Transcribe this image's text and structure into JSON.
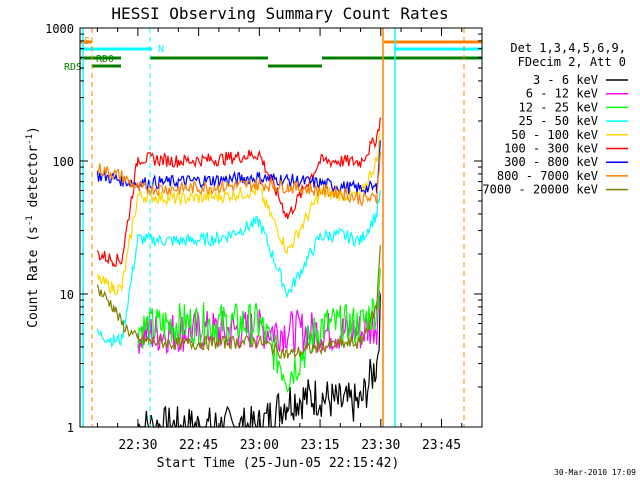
{
  "chart_data": {
    "type": "line",
    "title": "HESSI Observing Summary Count Rates",
    "xlabel": "Start Time (25-Jun-05 22:15:42)",
    "ylabel": "Count Rate (s⁻¹ detector⁻¹)",
    "ylabel_parts": [
      "Count Rate (s",
      "-1",
      " detector",
      "-1",
      ")"
    ],
    "yscale": "log",
    "ylim": [
      1,
      1000
    ],
    "xlim": [
      "22:15:42",
      "23:55:00"
    ],
    "x_ticks": [
      "22:30",
      "22:45",
      "23:00",
      "23:15",
      "23:30",
      "23:45"
    ],
    "y_ticks": [
      "1",
      "10",
      "100",
      "1000"
    ],
    "footer": "30-Mar-2010 17:09",
    "legend_header": [
      "Det 1,3,4,5,6,9,",
      "FDecim 2, Att 0"
    ],
    "flag_labels": [
      "S",
      "N",
      "RD0",
      "RDS"
    ],
    "flag_colors": {
      "S": "#ff8000",
      "N": "#00ffff",
      "RD0": "#008000",
      "RDS": "#008000"
    },
    "x": [
      "22:20",
      "22:24",
      "22:26",
      "22:30",
      "22:40",
      "22:50",
      "23:00",
      "23:07",
      "23:15",
      "23:20",
      "23:25",
      "23:29",
      "23:30"
    ],
    "series": [
      {
        "name": "3 - 6 keV",
        "color": "#000000",
        "values": [
          null,
          null,
          null,
          1,
          1,
          1,
          1,
          1.6,
          1.7,
          1.5,
          1.5,
          3,
          8
        ]
      },
      {
        "name": "6 - 12 keV",
        "color": "#ff00ff",
        "values": [
          null,
          null,
          null,
          5,
          5.2,
          5.3,
          5.4,
          5.3,
          5.2,
          5.2,
          5.2,
          6,
          12
        ]
      },
      {
        "name": "12 - 25 keV",
        "color": "#00ff00",
        "values": [
          null,
          null,
          null,
          5.5,
          6,
          6,
          6,
          2.4,
          5.8,
          5.8,
          5.8,
          8,
          18
        ]
      },
      {
        "name": "25 - 50 keV",
        "color": "#00ffff",
        "values": [
          5,
          4.5,
          4.5,
          26,
          25,
          26,
          35,
          10,
          27,
          28,
          25,
          40,
          60
        ]
      },
      {
        "name": "50 - 100 keV",
        "color": "#ffd700",
        "values": [
          13,
          11,
          11,
          55,
          52,
          54,
          60,
          21,
          57,
          56,
          55,
          100,
          180
        ]
      },
      {
        "name": "100 - 300 keV",
        "color": "#ff0000",
        "values": [
          20,
          18,
          18,
          105,
          100,
          103,
          113,
          38,
          100,
          100,
          98,
          150,
          220
        ]
      },
      {
        "name": "300 - 800 keV",
        "color": "#0000ff",
        "values": [
          78,
          74,
          72,
          68,
          70,
          72,
          75,
          72,
          68,
          64,
          62,
          63,
          150
        ]
      },
      {
        "name": "800 - 7000 keV",
        "color": "#ff8000",
        "values": [
          88,
          80,
          77,
          62,
          62,
          64,
          67,
          64,
          60,
          58,
          52,
          52,
          140
        ]
      },
      {
        "name": "7000 - 20000 keV",
        "color": "#808000",
        "values": [
          11,
          8,
          6,
          4.5,
          4.2,
          4.3,
          4.4,
          3.5,
          4.0,
          4.2,
          4.3,
          8,
          28
        ]
      }
    ]
  }
}
